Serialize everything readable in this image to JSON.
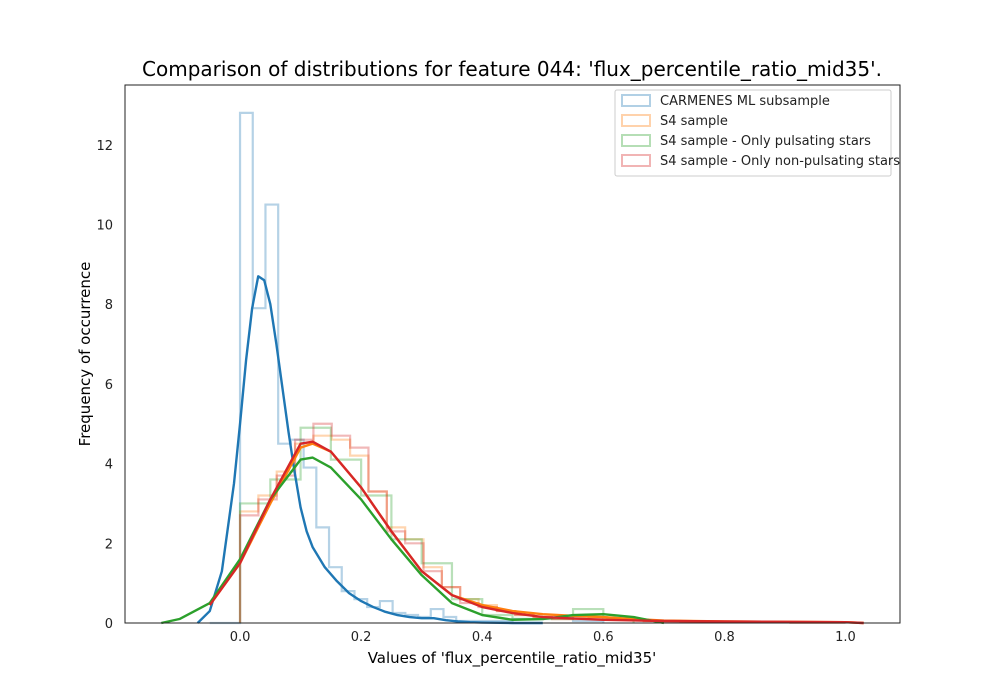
{
  "chart_data": {
    "type": "histogram+kde",
    "title": "Comparison of distributions for feature 044: 'flux_percentile_ratio_mid35'.",
    "xlabel": "Values of 'flux_percentile_ratio_mid35'",
    "ylabel": "Frequency of occurrence",
    "xlim": [
      -0.19,
      1.09
    ],
    "ylim": [
      0,
      13.5
    ],
    "xticks": [
      0.0,
      0.2,
      0.4,
      0.6,
      0.8,
      1.0
    ],
    "xtick_labels": [
      "0.0",
      "0.2",
      "0.4",
      "0.6",
      "0.8",
      "1.0"
    ],
    "yticks": [
      0,
      2,
      4,
      6,
      8,
      10,
      12
    ],
    "ytick_labels": [
      "0",
      "2",
      "4",
      "6",
      "8",
      "10",
      "12"
    ],
    "grid": false,
    "legend_position": "top-right",
    "series": [
      {
        "name": "CARMENES ML subsample",
        "color": "#1f77b4",
        "hist_edges": [
          -0.05,
          -0.025,
          0.0,
          0.021,
          0.042,
          0.063,
          0.084,
          0.105,
          0.126,
          0.147,
          0.168,
          0.189,
          0.21,
          0.231,
          0.252,
          0.273,
          0.294,
          0.315,
          0.336,
          0.357,
          0.378,
          0.4,
          0.45,
          0.5,
          0.55,
          0.6
        ],
        "hist_values": [
          0.0,
          0.0,
          12.8,
          7.9,
          10.5,
          4.5,
          4.6,
          3.9,
          2.4,
          1.4,
          0.8,
          0.6,
          0.4,
          0.55,
          0.25,
          0.2,
          0.15,
          0.35,
          0.15,
          0.05,
          0.05,
          0.05,
          0.1,
          0.15,
          0.05
        ],
        "kde_x": [
          -0.07,
          -0.05,
          -0.03,
          -0.01,
          0.0,
          0.01,
          0.02,
          0.03,
          0.04,
          0.05,
          0.06,
          0.07,
          0.08,
          0.09,
          0.1,
          0.11,
          0.12,
          0.14,
          0.16,
          0.18,
          0.2,
          0.22,
          0.24,
          0.26,
          0.28,
          0.3,
          0.32,
          0.34,
          0.36,
          0.38,
          0.4,
          0.45,
          0.5
        ],
        "kde_y": [
          0.0,
          0.3,
          1.3,
          3.5,
          5.0,
          6.6,
          7.9,
          8.7,
          8.6,
          8.0,
          7.0,
          5.9,
          4.8,
          3.8,
          2.9,
          2.3,
          1.9,
          1.4,
          1.05,
          0.75,
          0.55,
          0.4,
          0.28,
          0.2,
          0.15,
          0.12,
          0.12,
          0.07,
          0.04,
          0.02,
          0.01,
          0.0,
          0.0
        ]
      },
      {
        "name": "S4 sample",
        "color": "#ff7f0e",
        "hist_edges": [
          0.0,
          0.0303,
          0.0606,
          0.0909,
          0.1212,
          0.1515,
          0.1818,
          0.2121,
          0.2424,
          0.2727,
          0.303,
          0.3333,
          0.3636,
          0.3939,
          0.4242,
          0.4545,
          0.4848,
          0.5152,
          0.5455,
          0.5758,
          0.6061,
          0.6364,
          0.6667,
          0.697,
          0.7273,
          0.7576,
          0.7879,
          0.8182,
          0.8485,
          0.8788,
          0.9091,
          0.9394,
          0.9697,
          1.0
        ],
        "hist_values": [
          2.8,
          3.2,
          3.8,
          4.5,
          4.7,
          4.6,
          4.2,
          3.3,
          2.4,
          2.1,
          1.4,
          0.9,
          0.6,
          0.45,
          0.3,
          0.2,
          0.15,
          0.1,
          0.1,
          0.15,
          0.1,
          0.08,
          0.05,
          0.05,
          0.04,
          0.03,
          0.03,
          0.02,
          0.02,
          0.02,
          0.01,
          0.01,
          0.01
        ],
        "kde_x": [
          -0.05,
          0.0,
          0.05,
          0.1,
          0.12,
          0.15,
          0.2,
          0.25,
          0.3,
          0.35,
          0.4,
          0.45,
          0.5,
          0.55,
          0.6,
          0.65,
          0.7,
          0.8,
          0.9,
          1.0,
          1.03
        ],
        "kde_y": [
          0.45,
          1.5,
          3.0,
          4.4,
          4.5,
          4.3,
          3.4,
          2.3,
          1.3,
          0.7,
          0.45,
          0.3,
          0.22,
          0.18,
          0.15,
          0.1,
          0.06,
          0.04,
          0.03,
          0.02,
          0.0
        ]
      },
      {
        "name": "S4 sample - Only pulsating stars",
        "color": "#2ca02c",
        "hist_edges": [
          0.0,
          0.05,
          0.1,
          0.15,
          0.2,
          0.25,
          0.3,
          0.35,
          0.4,
          0.45,
          0.5,
          0.55,
          0.6,
          0.65
        ],
        "hist_values": [
          3.0,
          3.6,
          4.9,
          4.1,
          3.2,
          2.1,
          1.5,
          0.6,
          0.2,
          0.1,
          0.1,
          0.35,
          0.1
        ],
        "kde_x": [
          -0.13,
          -0.1,
          -0.05,
          0.0,
          0.05,
          0.1,
          0.12,
          0.15,
          0.2,
          0.25,
          0.3,
          0.35,
          0.4,
          0.45,
          0.5,
          0.55,
          0.6,
          0.65,
          0.7
        ],
        "kde_y": [
          0.0,
          0.1,
          0.5,
          1.6,
          3.1,
          4.1,
          4.15,
          3.9,
          3.1,
          2.1,
          1.2,
          0.5,
          0.2,
          0.08,
          0.1,
          0.2,
          0.22,
          0.15,
          0.0
        ]
      },
      {
        "name": "S4 sample - Only non-pulsating stars",
        "color": "#d62728",
        "hist_edges": [
          0.0,
          0.0303,
          0.0606,
          0.0909,
          0.1212,
          0.1515,
          0.1818,
          0.2121,
          0.2424,
          0.2727,
          0.303,
          0.3333,
          0.3636,
          0.3939,
          0.4242,
          0.4545,
          0.4848,
          0.5152,
          0.5455,
          0.5758,
          0.6061,
          0.6364,
          0.6667,
          0.697,
          0.7273,
          0.7576,
          0.7879,
          0.8182,
          0.8485,
          0.8788,
          0.9091,
          0.9394,
          0.9697,
          1.0
        ],
        "hist_values": [
          2.7,
          3.1,
          3.7,
          4.6,
          5.0,
          4.7,
          4.4,
          3.3,
          2.3,
          2.0,
          1.3,
          0.9,
          0.5,
          0.4,
          0.3,
          0.2,
          0.15,
          0.1,
          0.1,
          0.12,
          0.1,
          0.08,
          0.05,
          0.05,
          0.04,
          0.03,
          0.03,
          0.02,
          0.02,
          0.02,
          0.01,
          0.01,
          0.01
        ],
        "kde_x": [
          -0.05,
          0.0,
          0.05,
          0.1,
          0.12,
          0.15,
          0.2,
          0.25,
          0.3,
          0.35,
          0.4,
          0.45,
          0.5,
          0.6,
          0.7,
          0.8,
          0.9,
          1.0,
          1.03
        ],
        "kde_y": [
          0.45,
          1.5,
          3.1,
          4.5,
          4.55,
          4.3,
          3.4,
          2.3,
          1.3,
          0.7,
          0.4,
          0.25,
          0.15,
          0.08,
          0.05,
          0.04,
          0.03,
          0.02,
          0.0
        ]
      }
    ]
  }
}
